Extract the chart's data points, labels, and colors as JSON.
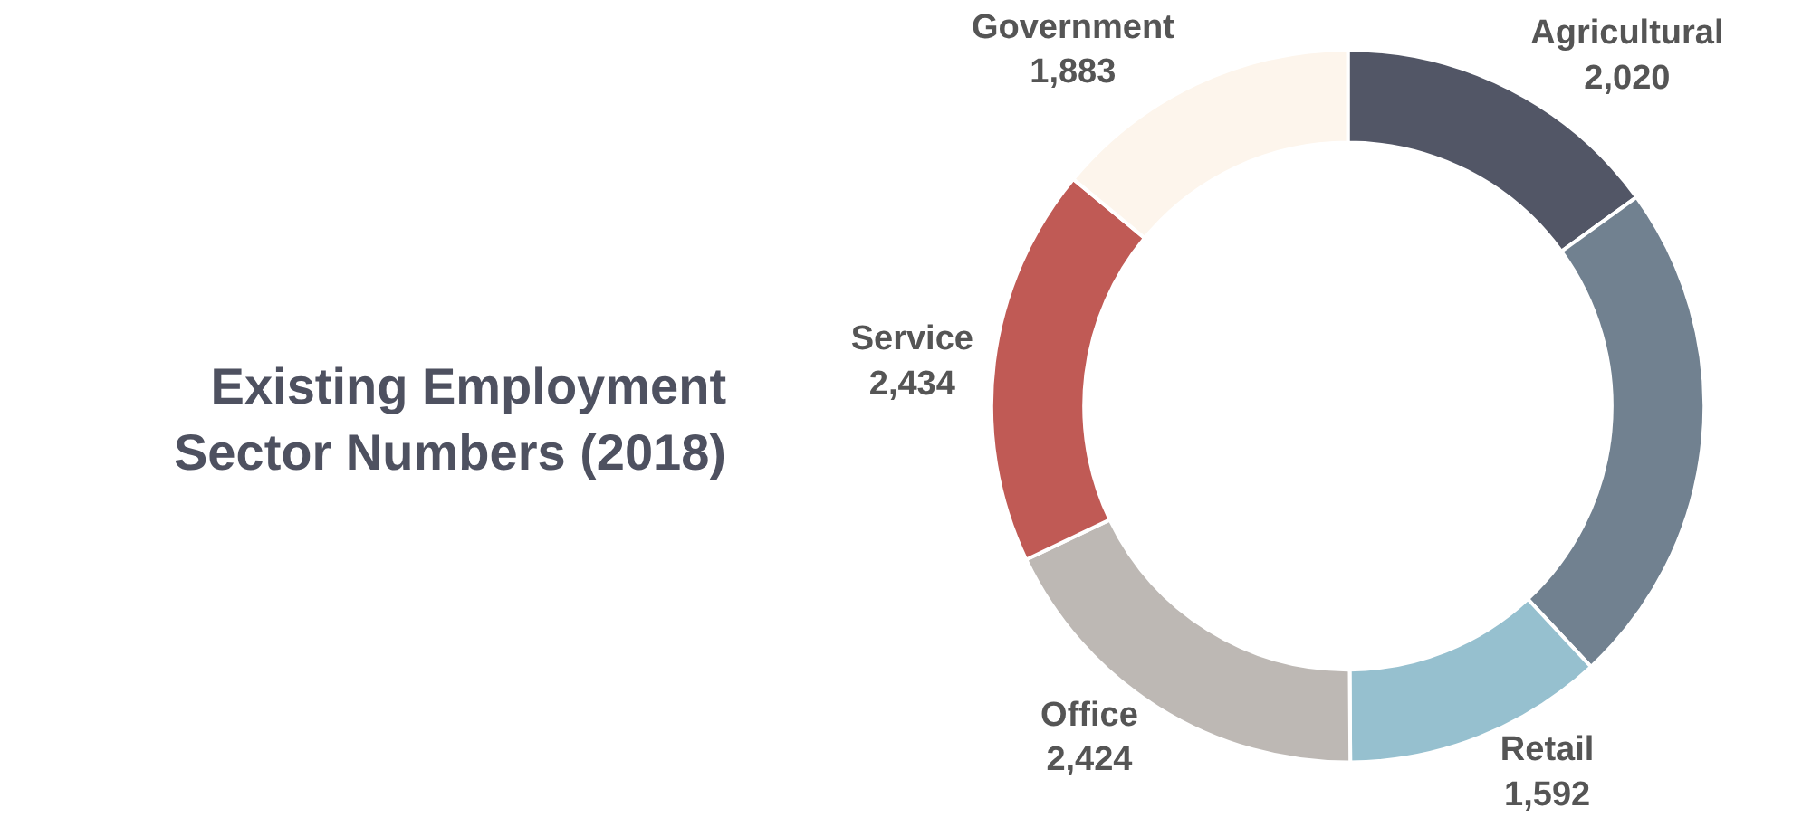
{
  "chart_data": {
    "type": "donut",
    "title": "Existing Employment\nSector Numbers (2018)",
    "categories": [
      "Agricultural",
      null,
      "Retail",
      "Office",
      "Service",
      "Government"
    ],
    "values": [
      2020,
      3100,
      1592,
      2424,
      2434,
      1883
    ],
    "value_labels": [
      "2,020",
      null,
      "1,592",
      "2,424",
      "2,434",
      "1,883"
    ],
    "colors": [
      "#525666",
      "#718190",
      "#96c0cf",
      "#bdb8b4",
      "#c05a55",
      "#fdf5ec"
    ],
    "legend": false
  }
}
